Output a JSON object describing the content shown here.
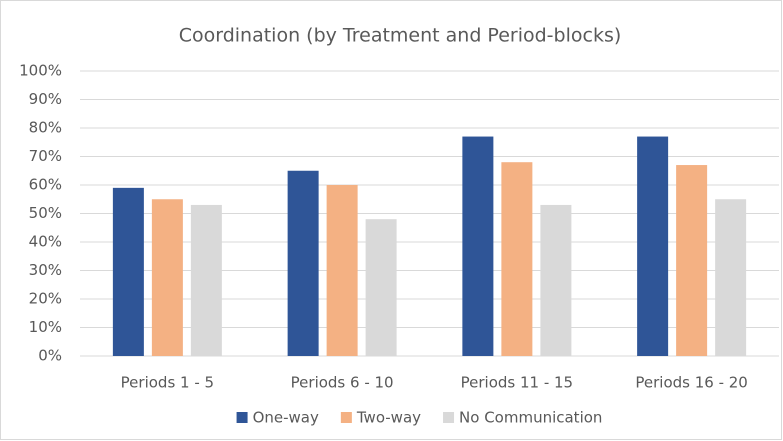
{
  "chart_data": {
    "type": "bar",
    "title": "Coordination (by Treatment and Period-blocks)",
    "categories": [
      "Periods 1 - 5",
      "Periods 6 - 10",
      "Periods 11 - 15",
      "Periods 16 - 20"
    ],
    "series": [
      {
        "name": "One-way",
        "color": "#2f5597",
        "values": [
          59,
          65,
          77,
          77
        ]
      },
      {
        "name": "Two-way",
        "color": "#f4b183",
        "values": [
          55,
          60,
          68,
          67
        ]
      },
      {
        "name": "No Communication",
        "color": "#d9d9d9",
        "values": [
          53,
          48,
          53,
          55
        ]
      }
    ],
    "ylim": [
      0,
      100
    ],
    "yticks": [
      {
        "value": 0,
        "label": "0%"
      },
      {
        "value": 10,
        "label": "10%"
      },
      {
        "value": 20,
        "label": "20%"
      },
      {
        "value": 30,
        "label": "30%"
      },
      {
        "value": 40,
        "label": "40%"
      },
      {
        "value": 50,
        "label": "50%"
      },
      {
        "value": 60,
        "label": "60%"
      },
      {
        "value": 70,
        "label": "70%"
      },
      {
        "value": 80,
        "label": "80%"
      },
      {
        "value": 90,
        "label": "90%"
      },
      {
        "value": 100,
        "label": "100%"
      }
    ],
    "grid": true,
    "legend": "bottom"
  }
}
